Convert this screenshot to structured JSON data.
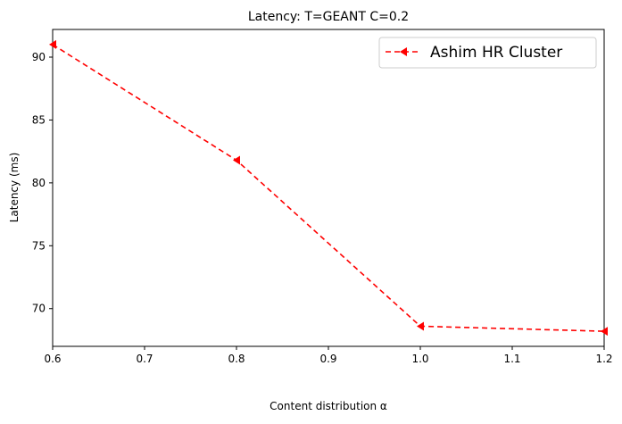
{
  "chart_data": {
    "type": "line",
    "title": "Latency: T=GEANT C=0.2",
    "xlabel": "Content distribution α",
    "ylabel": "Latency (ms)",
    "xlim": [
      0.6,
      1.2
    ],
    "ylim": [
      67.0,
      92.2
    ],
    "xticks": [
      0.6,
      0.7,
      0.8,
      0.9,
      1.0,
      1.1,
      1.2
    ],
    "xtick_labels": [
      "0.6",
      "0.7",
      "0.8",
      "0.9",
      "1.0",
      "1.1",
      "1.2"
    ],
    "yticks": [
      70,
      75,
      80,
      85,
      90
    ],
    "ytick_labels": [
      "70",
      "75",
      "80",
      "85",
      "90"
    ],
    "grid": false,
    "legend_position": "top-right",
    "series": [
      {
        "name": "Ashim HR Cluster",
        "color": "#ff0000",
        "line_style": "dashed",
        "marker": "triangle-left",
        "x": [
          0.6,
          0.8,
          1.0,
          1.2
        ],
        "y": [
          91.0,
          81.8,
          68.6,
          68.2
        ]
      }
    ]
  }
}
